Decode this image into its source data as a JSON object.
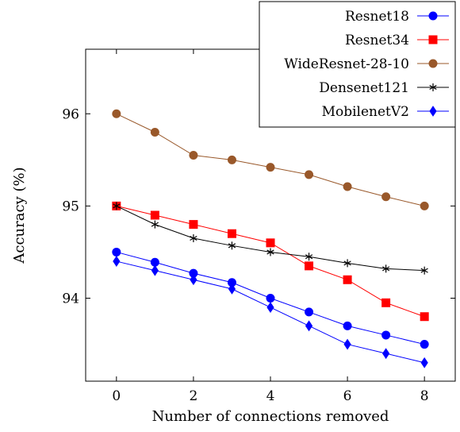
{
  "chart_data": {
    "type": "line",
    "title": "",
    "xlabel": "Number of connections removed",
    "ylabel": "Accuracy (%)",
    "x": [
      0,
      1,
      2,
      3,
      4,
      5,
      6,
      7,
      8
    ],
    "xlim": [
      -0.8,
      8.8
    ],
    "ylim": [
      93.1,
      96.7
    ],
    "xticks": [
      0,
      2,
      4,
      6,
      8
    ],
    "yticks": [
      94,
      95,
      96
    ],
    "grid": false,
    "legend_position": "top-right",
    "series": [
      {
        "name": "Resnet18",
        "color": "#0000ff",
        "marker": "circle",
        "values": [
          94.5,
          94.39,
          94.27,
          94.17,
          94.0,
          93.85,
          93.7,
          93.6,
          93.5
        ]
      },
      {
        "name": "Resnet34",
        "color": "#ff0000",
        "marker": "square",
        "values": [
          95.0,
          94.9,
          94.8,
          94.7,
          94.6,
          94.35,
          94.2,
          93.95,
          93.8
        ]
      },
      {
        "name": "WideResnet-28-10",
        "color": "#99582a",
        "marker": "circle",
        "values": [
          96.0,
          95.8,
          95.55,
          95.5,
          95.42,
          95.34,
          95.21,
          95.1,
          95.0
        ]
      },
      {
        "name": "Densenet121",
        "color": "#000000",
        "marker": "star",
        "values": [
          95.0,
          94.8,
          94.65,
          94.57,
          94.5,
          94.45,
          94.38,
          94.32,
          94.3
        ]
      },
      {
        "name": "MobilenetV2",
        "color": "#0000ff",
        "marker": "diamond",
        "values": [
          94.4,
          94.3,
          94.2,
          94.1,
          93.9,
          93.7,
          93.5,
          93.4,
          93.3
        ]
      }
    ]
  }
}
